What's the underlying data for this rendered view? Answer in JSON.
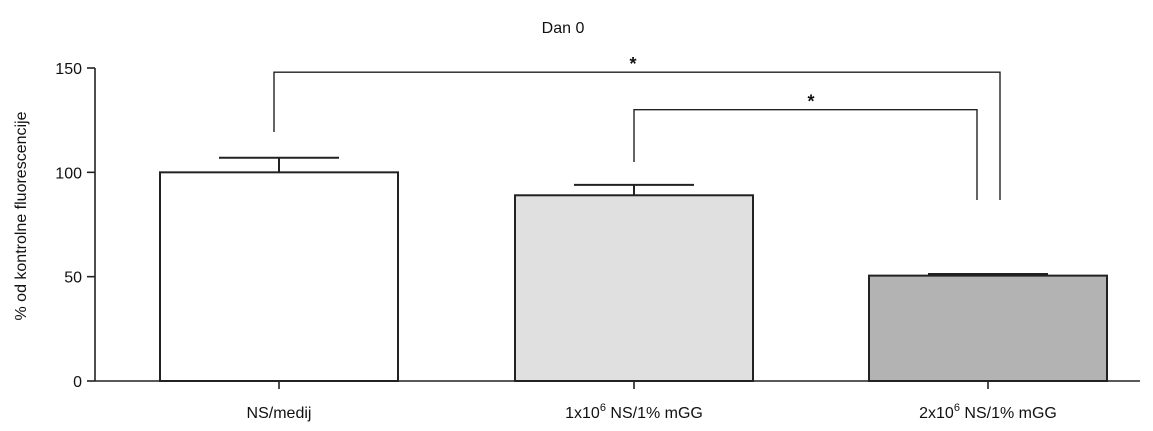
{
  "chart_data": {
    "type": "bar",
    "title": "Dan 0",
    "xlabel": "",
    "ylabel": "% od kontrolne fluorescencije",
    "ylim": [
      0,
      150
    ],
    "yticks": [
      0,
      50,
      100,
      150
    ],
    "grid": false,
    "categories": [
      {
        "pre": "NS/medij",
        "sup": "",
        "post": ""
      },
      {
        "pre": "1x10",
        "sup": "6",
        "post": " NS/1% mGG"
      },
      {
        "pre": "2x10",
        "sup": "6",
        "post": " NS/1% mGG"
      }
    ],
    "values": [
      100,
      89,
      50.5
    ],
    "errors": [
      7,
      5,
      0.8
    ],
    "colors": [
      "#ffffff",
      "#e0e0e0",
      "#b3b3b3"
    ],
    "significance": [
      {
        "from": 0,
        "to": 2,
        "label": "*",
        "y": 148
      },
      {
        "from": 1,
        "to": 2,
        "label": "*",
        "y": 130
      }
    ]
  }
}
